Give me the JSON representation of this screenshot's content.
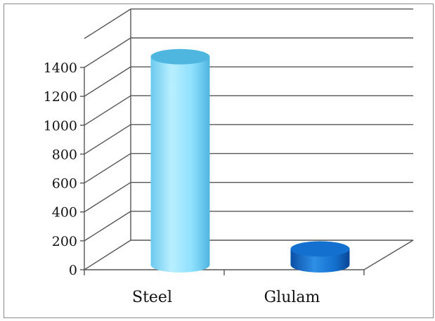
{
  "chart_data": {
    "type": "bar",
    "style": "3d-cylinder",
    "categories": [
      "Steel",
      "Glulam"
    ],
    "values": [
      1440,
      110
    ],
    "ylim": [
      0,
      1400
    ],
    "yticks": [
      0,
      200,
      400,
      600,
      800,
      1000,
      1200,
      1400
    ],
    "ytick_labels": [
      "0",
      "200",
      "400",
      "600",
      "800",
      "1000",
      "1200",
      "1400"
    ],
    "title": "",
    "xlabel": "",
    "ylabel": "",
    "grid": true,
    "legend": "none",
    "colors": {
      "steel_light": "#d6f6ff",
      "steel_mid": "#8fe0ff",
      "steel_dark": "#4fb6e0",
      "glulam_light": "#2e8fe6",
      "glulam_mid": "#1470cf",
      "glulam_dark": "#0b4fa6",
      "grid": "#555555"
    }
  }
}
